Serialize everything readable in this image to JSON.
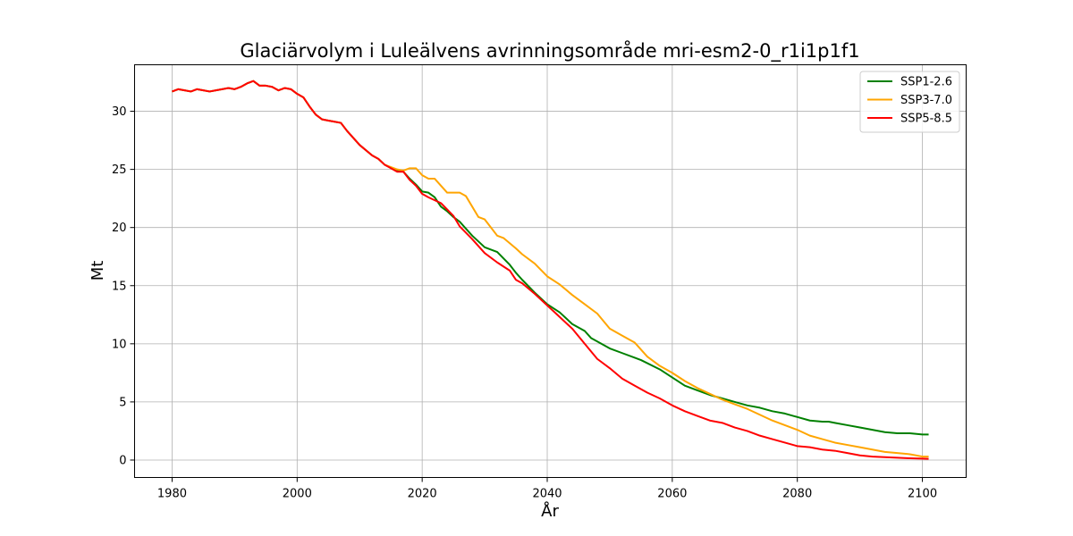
{
  "chart_data": {
    "type": "line",
    "title": "Glaciärvolym i Luleälvens avrinningsområde mri-esm2-0_r1i1p1f1",
    "xlabel": "År",
    "ylabel": "Mt",
    "xlim": [
      1974,
      2107
    ],
    "ylim": [
      -1.5,
      34.0
    ],
    "xticks": [
      1980,
      2000,
      2020,
      2040,
      2060,
      2080,
      2100
    ],
    "yticks": [
      0,
      5,
      10,
      15,
      20,
      25,
      30
    ],
    "grid": true,
    "legend_position": "top-right",
    "series": [
      {
        "name": "SSP1-2.6",
        "color": "#008000",
        "x": [
          1980,
          1981,
          1982,
          1983,
          1984,
          1985,
          1986,
          1987,
          1988,
          1989,
          1990,
          1991,
          1992,
          1993,
          1994,
          1995,
          1996,
          1997,
          1998,
          1999,
          2000,
          2001,
          2002,
          2003,
          2004,
          2005,
          2006,
          2007,
          2008,
          2010,
          2012,
          2013,
          2014,
          2016,
          2017,
          2018,
          2019,
          2020,
          2021,
          2022,
          2023,
          2024,
          2025,
          2026,
          2028,
          2030,
          2032,
          2034,
          2035,
          2036,
          2038,
          2040,
          2042,
          2044,
          2046,
          2047,
          2050,
          2052,
          2054,
          2055,
          2058,
          2060,
          2062,
          2064,
          2066,
          2068,
          2070,
          2072,
          2074,
          2076,
          2078,
          2080,
          2082,
          2084,
          2085,
          2086,
          2088,
          2090,
          2092,
          2094,
          2096,
          2098,
          2100,
          2101
        ],
        "y": [
          31.7,
          31.9,
          31.8,
          31.7,
          31.9,
          31.8,
          31.7,
          31.8,
          31.9,
          32.0,
          31.9,
          32.1,
          32.4,
          32.6,
          32.2,
          32.2,
          32.1,
          31.8,
          32.0,
          31.9,
          31.5,
          31.2,
          30.4,
          29.7,
          29.3,
          29.2,
          29.1,
          29.0,
          28.3,
          27.1,
          26.2,
          25.9,
          25.4,
          24.9,
          24.8,
          24.2,
          23.7,
          23.1,
          23.0,
          22.6,
          21.8,
          21.4,
          20.9,
          20.5,
          19.3,
          18.3,
          17.9,
          16.8,
          16.1,
          15.5,
          14.4,
          13.4,
          12.7,
          11.7,
          11.1,
          10.5,
          9.6,
          9.2,
          8.8,
          8.6,
          7.8,
          7.1,
          6.4,
          6.0,
          5.6,
          5.3,
          5.0,
          4.7,
          4.5,
          4.2,
          4.0,
          3.7,
          3.4,
          3.3,
          3.3,
          3.2,
          3.0,
          2.8,
          2.6,
          2.4,
          2.3,
          2.3,
          2.2,
          2.2
        ]
      },
      {
        "name": "SSP3-7.0",
        "color": "#ffa500",
        "x": [
          1980,
          1981,
          1982,
          1983,
          1984,
          1985,
          1986,
          1987,
          1988,
          1989,
          1990,
          1991,
          1992,
          1993,
          1994,
          1995,
          1996,
          1997,
          1998,
          1999,
          2000,
          2001,
          2002,
          2003,
          2004,
          2005,
          2006,
          2007,
          2008,
          2010,
          2012,
          2013,
          2014,
          2016,
          2017,
          2018,
          2019,
          2020,
          2021,
          2022,
          2024,
          2026,
          2027,
          2029,
          2030,
          2032,
          2033,
          2035,
          2036,
          2038,
          2040,
          2042,
          2044,
          2046,
          2048,
          2050,
          2052,
          2054,
          2056,
          2058,
          2060,
          2062,
          2064,
          2066,
          2068,
          2070,
          2072,
          2074,
          2076,
          2078,
          2080,
          2082,
          2084,
          2086,
          2088,
          2090,
          2092,
          2094,
          2096,
          2098,
          2100,
          2101
        ],
        "y": [
          31.7,
          31.9,
          31.8,
          31.7,
          31.9,
          31.8,
          31.7,
          31.8,
          31.9,
          32.0,
          31.9,
          32.1,
          32.4,
          32.6,
          32.2,
          32.2,
          32.1,
          31.8,
          32.0,
          31.9,
          31.5,
          31.2,
          30.4,
          29.7,
          29.3,
          29.2,
          29.1,
          29.0,
          28.3,
          27.1,
          26.2,
          25.9,
          25.4,
          25.0,
          24.9,
          25.1,
          25.1,
          24.5,
          24.2,
          24.2,
          23.0,
          23.0,
          22.7,
          20.9,
          20.7,
          19.3,
          19.1,
          18.2,
          17.7,
          16.9,
          15.8,
          15.1,
          14.2,
          13.4,
          12.6,
          11.3,
          10.7,
          10.1,
          8.9,
          8.1,
          7.5,
          6.8,
          6.2,
          5.7,
          5.2,
          4.8,
          4.4,
          3.9,
          3.4,
          3.0,
          2.6,
          2.1,
          1.8,
          1.5,
          1.3,
          1.1,
          0.9,
          0.7,
          0.6,
          0.5,
          0.3,
          0.3
        ]
      },
      {
        "name": "SSP5-8.5",
        "color": "#ff0000",
        "x": [
          1980,
          1981,
          1982,
          1983,
          1984,
          1985,
          1986,
          1987,
          1988,
          1989,
          1990,
          1991,
          1992,
          1993,
          1994,
          1995,
          1996,
          1997,
          1998,
          1999,
          2000,
          2001,
          2002,
          2003,
          2004,
          2005,
          2006,
          2007,
          2008,
          2010,
          2012,
          2013,
          2014,
          2016,
          2017,
          2018,
          2019,
          2020,
          2021,
          2023,
          2025,
          2026,
          2028,
          2030,
          2032,
          2034,
          2035,
          2036,
          2038,
          2040,
          2042,
          2044,
          2046,
          2048,
          2050,
          2052,
          2054,
          2056,
          2058,
          2060,
          2062,
          2064,
          2066,
          2068,
          2070,
          2072,
          2074,
          2076,
          2078,
          2080,
          2082,
          2084,
          2086,
          2088,
          2090,
          2092,
          2094,
          2096,
          2098,
          2100,
          2101
        ],
        "y": [
          31.7,
          31.9,
          31.8,
          31.7,
          31.9,
          31.8,
          31.7,
          31.8,
          31.9,
          32.0,
          31.9,
          32.1,
          32.4,
          32.6,
          32.2,
          32.2,
          32.1,
          31.8,
          32.0,
          31.9,
          31.5,
          31.2,
          30.4,
          29.7,
          29.3,
          29.2,
          29.1,
          29.0,
          28.3,
          27.1,
          26.2,
          25.9,
          25.4,
          24.8,
          24.8,
          24.1,
          23.6,
          22.9,
          22.6,
          22.1,
          21.0,
          20.1,
          19.0,
          17.8,
          17.0,
          16.3,
          15.5,
          15.2,
          14.3,
          13.3,
          12.3,
          11.3,
          10.0,
          8.7,
          7.9,
          7.0,
          6.4,
          5.8,
          5.3,
          4.7,
          4.2,
          3.8,
          3.4,
          3.2,
          2.8,
          2.5,
          2.1,
          1.8,
          1.5,
          1.2,
          1.1,
          0.9,
          0.8,
          0.6,
          0.4,
          0.3,
          0.25,
          0.2,
          0.15,
          0.12,
          0.1
        ]
      }
    ]
  }
}
